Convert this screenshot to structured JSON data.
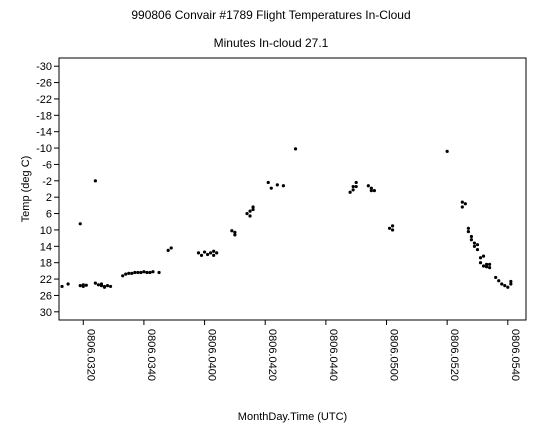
{
  "chart_data": {
    "type": "scatter",
    "title": "990806 Convair #1789 Flight Temperatures In-Cloud",
    "subtitle": "Minutes In-cloud 27.1",
    "xlabel": "MonthDay.Time (UTC)",
    "ylabel": "Temp (deg C)",
    "x_ticks": [
      "0806.0320",
      "0806.0340",
      "0806.0400",
      "0806.0420",
      "0806.0440",
      "0806.0500",
      "0806.0520",
      "0806.0540"
    ],
    "y_ticks": [
      "-30",
      "-26",
      "-22",
      "-18",
      "-14",
      "-10",
      "-6",
      "-2",
      "2",
      "6",
      "10",
      "14",
      "18",
      "22",
      "26",
      "30"
    ],
    "xlim": [
      "0806.0312",
      "0806.0546"
    ],
    "ylim": [
      -32,
      32
    ],
    "y_axis_inverted": true,
    "grid": false,
    "marker_color": "#000000",
    "points": [
      [
        "0806.0313",
        23.8
      ],
      [
        "0806.0315",
        23.2
      ],
      [
        "0806.0319",
        8.5
      ],
      [
        "0806.0319",
        23.6
      ],
      [
        "0806.0320",
        23.4
      ],
      [
        "0806.0320",
        23.8
      ],
      [
        "0806.0321",
        23.5
      ],
      [
        "0806.0324",
        -2.0
      ],
      [
        "0806.0324",
        23.0
      ],
      [
        "0806.0325",
        23.4
      ],
      [
        "0806.0326",
        23.6
      ],
      [
        "0806.0326",
        23.2
      ],
      [
        "0806.0327",
        23.8
      ],
      [
        "0806.0327",
        24.0
      ],
      [
        "0806.0328",
        23.6
      ],
      [
        "0806.0329",
        23.8
      ],
      [
        "0806.0333",
        21.2
      ],
      [
        "0806.0334",
        20.8
      ],
      [
        "0806.0335",
        20.6
      ],
      [
        "0806.0336",
        20.6
      ],
      [
        "0806.0337",
        20.4
      ],
      [
        "0806.0338",
        20.4
      ],
      [
        "0806.0339",
        20.4
      ],
      [
        "0806.0340",
        20.2
      ],
      [
        "0806.0341",
        20.4
      ],
      [
        "0806.0342",
        20.4
      ],
      [
        "0806.0343",
        20.2
      ],
      [
        "0806.0345",
        20.4
      ],
      [
        "0806.0348",
        15.0
      ],
      [
        "0806.0349",
        14.4
      ],
      [
        "0806.0358",
        15.6
      ],
      [
        "0806.0359",
        16.2
      ],
      [
        "0806.0400",
        15.4
      ],
      [
        "0806.0401",
        16.0
      ],
      [
        "0806.0402",
        15.6
      ],
      [
        "0806.0403",
        15.2
      ],
      [
        "0806.0403",
        16.2
      ],
      [
        "0806.0404",
        15.6
      ],
      [
        "0806.0409",
        10.2
      ],
      [
        "0806.0410",
        11.2
      ],
      [
        "0806.0410",
        10.6
      ],
      [
        "0806.0414",
        6.0
      ],
      [
        "0806.0415",
        5.4
      ],
      [
        "0806.0415",
        6.6
      ],
      [
        "0806.0416",
        5.0
      ],
      [
        "0806.0416",
        4.4
      ],
      [
        "0806.0421",
        -1.6
      ],
      [
        "0806.0422",
        -0.2
      ],
      [
        "0806.0424",
        -1.0
      ],
      [
        "0806.0426",
        -0.8
      ],
      [
        "0806.0430",
        -9.8
      ],
      [
        "0806.0448",
        0.8
      ],
      [
        "0806.0449",
        -0.6
      ],
      [
        "0806.0449",
        0.2
      ],
      [
        "0806.0450",
        -1.6
      ],
      [
        "0806.0450",
        -0.6
      ],
      [
        "0806.0454",
        -0.8
      ],
      [
        "0806.0455",
        0.4
      ],
      [
        "0806.0455",
        -0.2
      ],
      [
        "0806.0456",
        0.4
      ],
      [
        "0806.0501",
        9.6
      ],
      [
        "0806.0502",
        10.0
      ],
      [
        "0806.0502",
        9.0
      ],
      [
        "0806.0520",
        -9.2
      ],
      [
        "0806.0525",
        3.2
      ],
      [
        "0806.0525",
        4.4
      ],
      [
        "0806.0526",
        3.6
      ],
      [
        "0806.0527",
        9.6
      ],
      [
        "0806.0527",
        10.4
      ],
      [
        "0806.0528",
        11.6
      ],
      [
        "0806.0528",
        12.4
      ],
      [
        "0806.0529",
        13.2
      ],
      [
        "0806.0529",
        14.0
      ],
      [
        "0806.0530",
        14.8
      ],
      [
        "0806.0530",
        13.6
      ],
      [
        "0806.0531",
        16.8
      ],
      [
        "0806.0531",
        18.0
      ],
      [
        "0806.0532",
        18.8
      ],
      [
        "0806.0532",
        16.4
      ],
      [
        "0806.0533",
        18.4
      ],
      [
        "0806.0533",
        19.0
      ],
      [
        "0806.0534",
        18.4
      ],
      [
        "0806.0534",
        19.2
      ],
      [
        "0806.0536",
        21.6
      ],
      [
        "0806.0537",
        22.4
      ],
      [
        "0806.0538",
        23.2
      ],
      [
        "0806.0539",
        23.6
      ],
      [
        "0806.0540",
        24.0
      ],
      [
        "0806.0541",
        23.2
      ],
      [
        "0806.0541",
        22.6
      ]
    ]
  }
}
